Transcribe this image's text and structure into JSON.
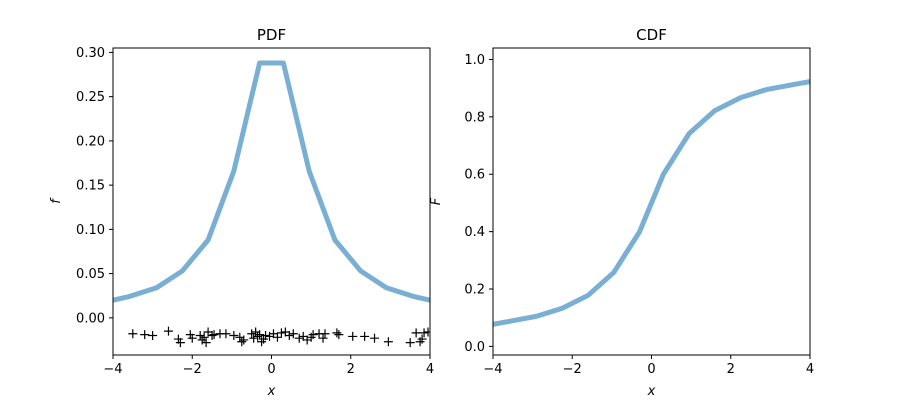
{
  "chart_data": [
    {
      "type": "line",
      "title": "PDF",
      "xlabel": "x",
      "ylabel": "f",
      "xlim": [
        -4,
        4
      ],
      "ylim": [
        -0.042,
        0.305
      ],
      "xticks": [
        -4,
        -2,
        0,
        2,
        4
      ],
      "xtick_labels": [
        "−4",
        "−2",
        "0",
        "2",
        "4"
      ],
      "yticks": [
        0.0,
        0.05,
        0.1,
        0.15,
        0.2,
        0.25,
        0.3
      ],
      "ytick_labels": [
        "0.00",
        "0.05",
        "0.10",
        "0.15",
        "0.20",
        "0.25",
        "0.30"
      ],
      "series": [
        {
          "color": "#7aafd4",
          "x": [
            -4.0,
            -3.6,
            -2.9,
            -2.25,
            -1.6,
            -0.95,
            -0.3,
            0.3,
            0.95,
            1.6,
            2.25,
            2.9,
            3.6,
            4.0
          ],
          "y": [
            0.02,
            0.024,
            0.034,
            0.053,
            0.088,
            0.166,
            0.288,
            0.288,
            0.166,
            0.088,
            0.053,
            0.034,
            0.024,
            0.02
          ]
        }
      ],
      "markers": {
        "symbol": "+",
        "color": "#000000",
        "points": [
          [
            -3.5,
            -0.018
          ],
          [
            -3.2,
            -0.019
          ],
          [
            -3.0,
            -0.02
          ],
          [
            -2.6,
            -0.015
          ],
          [
            -2.35,
            -0.024
          ],
          [
            -2.3,
            -0.028
          ],
          [
            -2.05,
            -0.019
          ],
          [
            -2.0,
            -0.023
          ],
          [
            -1.8,
            -0.02
          ],
          [
            -1.75,
            -0.025
          ],
          [
            -1.7,
            -0.022
          ],
          [
            -1.65,
            -0.028
          ],
          [
            -1.6,
            -0.016
          ],
          [
            -1.5,
            -0.02
          ],
          [
            -1.45,
            -0.019
          ],
          [
            -1.3,
            -0.018
          ],
          [
            -1.15,
            -0.018
          ],
          [
            -0.95,
            -0.02
          ],
          [
            -0.8,
            -0.022
          ],
          [
            -0.75,
            -0.027
          ],
          [
            -0.7,
            -0.025
          ],
          [
            -0.5,
            -0.018
          ],
          [
            -0.45,
            -0.023
          ],
          [
            -0.4,
            -0.016
          ],
          [
            -0.35,
            -0.021
          ],
          [
            -0.3,
            -0.019
          ],
          [
            -0.25,
            -0.027
          ],
          [
            -0.2,
            -0.024
          ],
          [
            -0.15,
            -0.02
          ],
          [
            -0.05,
            -0.021
          ],
          [
            0.05,
            -0.018
          ],
          [
            0.15,
            -0.022
          ],
          [
            0.25,
            -0.017
          ],
          [
            0.35,
            -0.016
          ],
          [
            0.45,
            -0.02
          ],
          [
            0.55,
            -0.018
          ],
          [
            0.7,
            -0.023
          ],
          [
            0.8,
            -0.021
          ],
          [
            0.9,
            -0.025
          ],
          [
            1.0,
            -0.022
          ],
          [
            1.05,
            -0.019
          ],
          [
            1.2,
            -0.018
          ],
          [
            1.3,
            -0.023
          ],
          [
            1.35,
            -0.018
          ],
          [
            1.65,
            -0.017
          ],
          [
            1.7,
            -0.019
          ],
          [
            2.05,
            -0.021
          ],
          [
            2.35,
            -0.021
          ],
          [
            2.6,
            -0.023
          ],
          [
            2.95,
            -0.027
          ],
          [
            3.5,
            -0.028
          ],
          [
            3.65,
            -0.017
          ],
          [
            3.75,
            -0.027
          ],
          [
            3.8,
            -0.024
          ],
          [
            3.85,
            -0.017
          ],
          [
            3.95,
            -0.016
          ]
        ]
      }
    },
    {
      "type": "line",
      "title": "CDF",
      "xlabel": "x",
      "ylabel": "F",
      "xlim": [
        -4,
        4
      ],
      "ylim": [
        -0.03,
        1.04
      ],
      "xticks": [
        -4,
        -2,
        0,
        2,
        4
      ],
      "xtick_labels": [
        "−4",
        "−2",
        "0",
        "2",
        "4"
      ],
      "yticks": [
        0.0,
        0.2,
        0.4,
        0.6,
        0.8,
        1.0
      ],
      "ytick_labels": [
        "0.0",
        "0.2",
        "0.4",
        "0.6",
        "0.8",
        "1.0"
      ],
      "series": [
        {
          "color": "#7aafd4",
          "x": [
            -4.0,
            -3.6,
            -2.9,
            -2.25,
            -1.6,
            -0.95,
            -0.3,
            0.3,
            0.95,
            1.6,
            2.25,
            2.9,
            3.6,
            4.0
          ],
          "y": [
            0.077,
            0.087,
            0.105,
            0.133,
            0.178,
            0.258,
            0.4,
            0.6,
            0.742,
            0.822,
            0.867,
            0.895,
            0.913,
            0.923
          ]
        }
      ]
    }
  ]
}
